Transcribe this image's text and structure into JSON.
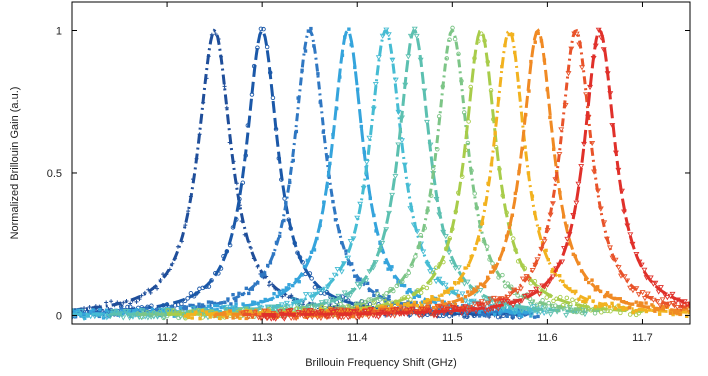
{
  "chart_data": {
    "type": "line",
    "title": "",
    "xlabel": "Brillouin Frequency Shift (GHz)",
    "ylabel": "Normalized Brillouin Gain (a.u.)",
    "xlim": [
      11.1,
      11.75
    ],
    "ylim": [
      -0.03,
      1.1
    ],
    "xticks": [
      11.2,
      11.3,
      11.4,
      11.5,
      11.6,
      11.7
    ],
    "xtick_labels": [
      "11.2",
      "11.3",
      "11.4",
      "11.5",
      "11.6",
      "11.7"
    ],
    "yticks": [
      0,
      0.5,
      1
    ],
    "ytick_labels": [
      "0",
      "0.5",
      "1"
    ],
    "grid": false,
    "legend": "none",
    "series": [
      {
        "center": 11.25,
        "fwhm": 0.042,
        "color": "#1f4e9a",
        "marker": "plus",
        "x_range": [
          11.1,
          11.58
        ]
      },
      {
        "center": 11.3,
        "fwhm": 0.04,
        "color": "#1b58a8",
        "marker": "circle",
        "x_range": [
          11.1,
          11.58
        ]
      },
      {
        "center": 11.35,
        "fwhm": 0.04,
        "color": "#2f77c2",
        "marker": "square",
        "x_range": [
          11.1,
          11.59
        ]
      },
      {
        "center": 11.39,
        "fwhm": 0.04,
        "color": "#35a4dc",
        "marker": "square",
        "x_range": [
          11.1,
          11.59
        ]
      },
      {
        "center": 11.43,
        "fwhm": 0.042,
        "color": "#46bcd3",
        "marker": "triangle",
        "x_range": [
          11.1,
          11.6
        ]
      },
      {
        "center": 11.46,
        "fwhm": 0.04,
        "color": "#5cc0b0",
        "marker": "triangle",
        "x_range": [
          11.14,
          11.64
        ]
      },
      {
        "center": 11.5,
        "fwhm": 0.04,
        "color": "#7dc587",
        "marker": "circle",
        "x_range": [
          11.17,
          11.66
        ]
      },
      {
        "center": 11.53,
        "fwhm": 0.04,
        "color": "#a8cc4a",
        "marker": "circle",
        "x_range": [
          11.2,
          11.7
        ]
      },
      {
        "center": 11.56,
        "fwhm": 0.04,
        "color": "#f2b21f",
        "marker": "square",
        "x_range": [
          11.22,
          11.75
        ]
      },
      {
        "center": 11.59,
        "fwhm": 0.04,
        "color": "#f08a24",
        "marker": "square",
        "x_range": [
          11.25,
          11.75
        ]
      },
      {
        "center": 11.63,
        "fwhm": 0.04,
        "color": "#e8532a",
        "marker": "triangle",
        "x_range": [
          11.28,
          11.75
        ]
      },
      {
        "center": 11.655,
        "fwhm": 0.04,
        "color": "#e0302a",
        "marker": "triangle",
        "x_range": [
          11.3,
          11.75
        ]
      }
    ]
  }
}
